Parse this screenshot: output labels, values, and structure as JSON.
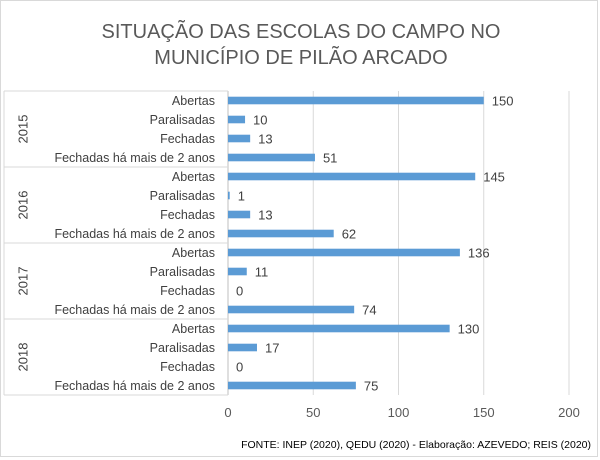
{
  "chart_data": {
    "type": "bar",
    "orientation": "horizontal",
    "title_lines": [
      "SITUAÇÃO DAS ESCOLAS DO CAMPO NO",
      "MUNICÍPIO DE PILÃO ARCADO"
    ],
    "groups": [
      {
        "label": "2015",
        "categories": [
          "Abertas",
          "Paralisadas",
          "Fechadas",
          "Fechadas há mais de 2 anos"
        ],
        "values": [
          150,
          10,
          13,
          51
        ]
      },
      {
        "label": "2016",
        "categories": [
          "Abertas",
          "Paralisadas",
          "Fechadas",
          "Fechadas há mais de 2 anos"
        ],
        "values": [
          145,
          1,
          13,
          62
        ]
      },
      {
        "label": "2017",
        "categories": [
          "Abertas",
          "Paralisadas",
          "Fechadas",
          "Fechadas há mais de 2 anos"
        ],
        "values": [
          136,
          11,
          0,
          74
        ]
      },
      {
        "label": "2018",
        "categories": [
          "Abertas",
          "Paralisadas",
          "Fechadas",
          "Fechadas há mais de 2 anos"
        ],
        "values": [
          130,
          17,
          0,
          75
        ]
      }
    ],
    "xlim": [
      0,
      200
    ],
    "xticks": [
      0,
      50,
      100,
      150,
      200
    ],
    "grid": true,
    "bar_color": "#5b9bd5",
    "legend": "none",
    "source": "FONTE: INEP (2020),  QEDU (2020) - Elaboração: AZEVEDO; REIS (2020)"
  }
}
